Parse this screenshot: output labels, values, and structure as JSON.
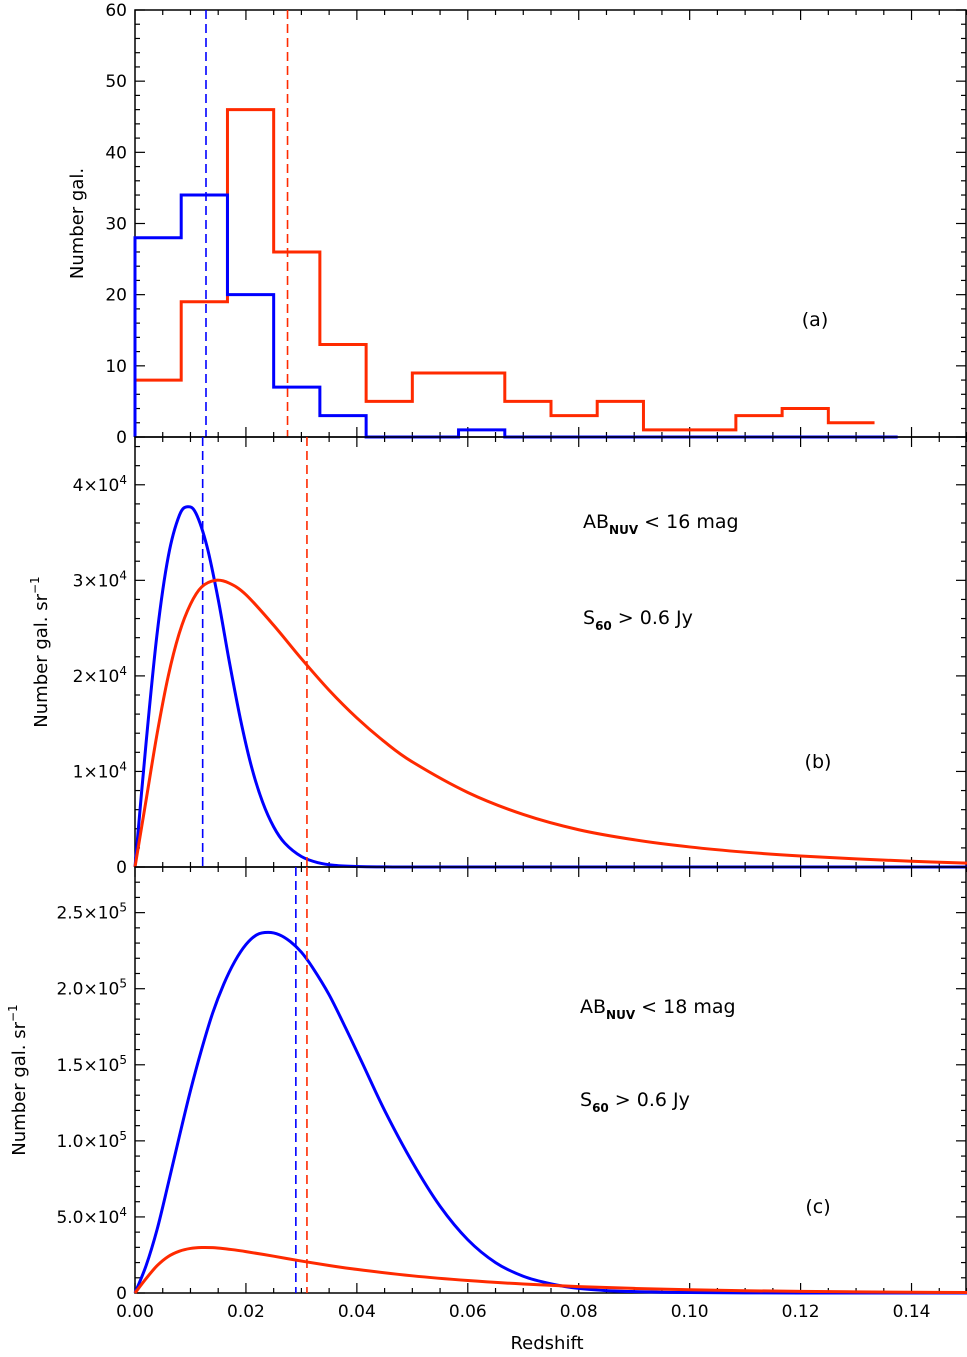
{
  "chart_data": [
    {
      "id": "a",
      "type": "histogram",
      "panel_label": "(a)",
      "ylabel": "Number gal.",
      "xlim": [
        0,
        0.15
      ],
      "ylim": [
        0,
        60
      ],
      "yticks": [
        {
          "v": 0,
          "label": "0"
        },
        {
          "v": 10,
          "label": "10"
        },
        {
          "v": 20,
          "label": "20"
        },
        {
          "v": 30,
          "label": "30"
        },
        {
          "v": 40,
          "label": "40"
        },
        {
          "v": 50,
          "label": "50"
        },
        {
          "v": 60,
          "label": "60"
        }
      ],
      "series": [
        {
          "color": "#ff2a00",
          "edges": [
            0,
            0.00833,
            0.01667,
            0.025,
            0.03333,
            0.04167,
            0.05,
            0.05833,
            0.06667,
            0.075,
            0.08333,
            0.09167,
            0.1,
            0.10833,
            0.11667,
            0.125,
            0.13333
          ],
          "counts": [
            8,
            19,
            46,
            26,
            13,
            5,
            9,
            9,
            5,
            3,
            5,
            1,
            1,
            3,
            4,
            2
          ],
          "vline": 0.0275
        },
        {
          "color": "#0000ff",
          "edges": [
            0,
            0.00833,
            0.01667,
            0.025,
            0.03333,
            0.04167,
            0.05,
            0.05833,
            0.06667,
            0.075,
            0.08333,
            0.09167,
            0.1,
            0.10833,
            0.11667,
            0.125,
            0.13333,
            0.1375
          ],
          "counts": [
            28,
            34,
            20,
            7,
            3,
            0,
            0,
            1,
            0,
            0,
            0,
            0,
            0,
            0,
            0,
            0,
            0
          ],
          "vline": 0.0128
        }
      ]
    },
    {
      "id": "b",
      "type": "line",
      "panel_label": "(b)",
      "ylabel": "Number gal. sr",
      "ylabel_sup": "−1",
      "annotations": [
        {
          "main": "AB",
          "sub": "NUV",
          "rest": " < 16 mag"
        },
        {
          "main": "S",
          "sub": "60",
          "rest": " > 0.6 Jy"
        }
      ],
      "xlim": [
        0,
        0.15
      ],
      "ylim": [
        0,
        45000
      ],
      "yticks": [
        {
          "v": 0,
          "label": "0",
          "sup": ""
        },
        {
          "v": 10000,
          "label": "1×10",
          "sup": "4"
        },
        {
          "v": 20000,
          "label": "2×10",
          "sup": "4"
        },
        {
          "v": 30000,
          "label": "3×10",
          "sup": "4"
        },
        {
          "v": 40000,
          "label": "4×10",
          "sup": "4"
        }
      ],
      "series": [
        {
          "color": "#0000ff",
          "x": [
            0,
            0.002,
            0.004,
            0.006,
            0.008,
            0.0095,
            0.011,
            0.013,
            0.015,
            0.017,
            0.019,
            0.021,
            0.023,
            0.025,
            0.027,
            0.03,
            0.033,
            0.036,
            0.04,
            0.045,
            0.05,
            0.06,
            0.08,
            0.1,
            0.15
          ],
          "y": [
            0,
            13000,
            24500,
            32500,
            36800,
            37700,
            37000,
            33500,
            28000,
            21500,
            15500,
            10500,
            6800,
            4200,
            2500,
            1100,
            450,
            170,
            50,
            10,
            0,
            0,
            0,
            0,
            0
          ],
          "vline": 0.0122
        },
        {
          "color": "#ff2a00",
          "x": [
            0,
            0.002,
            0.004,
            0.006,
            0.008,
            0.01,
            0.012,
            0.0145,
            0.017,
            0.02,
            0.025,
            0.03,
            0.035,
            0.04,
            0.045,
            0.05,
            0.06,
            0.07,
            0.08,
            0.09,
            0.1,
            0.11,
            0.12,
            0.13,
            0.14,
            0.15
          ],
          "y": [
            0,
            7000,
            14000,
            20000,
            24500,
            27500,
            29300,
            30000,
            29700,
            28500,
            25300,
            21800,
            18500,
            15600,
            13100,
            11000,
            7800,
            5500,
            3900,
            2850,
            2100,
            1550,
            1150,
            850,
            600,
            400
          ],
          "vline": 0.031
        }
      ]
    },
    {
      "id": "c",
      "type": "line",
      "panel_label": "(c)",
      "ylabel": "Number gal. sr",
      "ylabel_sup": "−1",
      "xlabel": "Redshift",
      "annotations": [
        {
          "main": "AB",
          "sub": "NUV",
          "rest": " < 18 mag"
        },
        {
          "main": "S",
          "sub": "60",
          "rest": " > 0.6 Jy"
        }
      ],
      "xlim": [
        0,
        0.15
      ],
      "ylim": [
        0,
        280000
      ],
      "xticks": [
        {
          "v": 0,
          "label": "0.00"
        },
        {
          "v": 0.02,
          "label": "0.02"
        },
        {
          "v": 0.04,
          "label": "0.04"
        },
        {
          "v": 0.06,
          "label": "0.06"
        },
        {
          "v": 0.08,
          "label": "0.08"
        },
        {
          "v": 0.1,
          "label": "0.10"
        },
        {
          "v": 0.12,
          "label": "0.12"
        },
        {
          "v": 0.14,
          "label": "0.14"
        }
      ],
      "yticks": [
        {
          "v": 0,
          "label": "0",
          "sup": ""
        },
        {
          "v": 50000,
          "label": "5.0×10",
          "sup": "4"
        },
        {
          "v": 100000,
          "label": "1.0×10",
          "sup": "5"
        },
        {
          "v": 150000,
          "label": "1.5×10",
          "sup": "5"
        },
        {
          "v": 200000,
          "label": "2.0×10",
          "sup": "5"
        },
        {
          "v": 250000,
          "label": "2.5×10",
          "sup": "5"
        }
      ],
      "series": [
        {
          "color": "#0000ff",
          "x": [
            0,
            0.002,
            0.004,
            0.006,
            0.008,
            0.01,
            0.012,
            0.014,
            0.016,
            0.018,
            0.02,
            0.022,
            0.024,
            0.026,
            0.028,
            0.03,
            0.032,
            0.035,
            0.038,
            0.041,
            0.045,
            0.05,
            0.055,
            0.06,
            0.065,
            0.07,
            0.075,
            0.08,
            0.085,
            0.09,
            0.095,
            0.1,
            0.11,
            0.12,
            0.13,
            0.15
          ],
          "y": [
            0,
            18000,
            42000,
            72000,
            103000,
            133000,
            160000,
            184000,
            203000,
            218000,
            229000,
            235500,
            237000,
            235500,
            231000,
            224000,
            214000,
            196000,
            174000,
            151000,
            120000,
            86000,
            57000,
            35000,
            20000,
            11000,
            6000,
            3000,
            1600,
            900,
            500,
            300,
            100,
            0,
            0,
            0
          ],
          "vline": 0.029
        },
        {
          "color": "#ff2a00",
          "x": [
            0,
            0.002,
            0.004,
            0.006,
            0.008,
            0.01,
            0.012,
            0.014,
            0.016,
            0.018,
            0.02,
            0.025,
            0.03,
            0.035,
            0.04,
            0.05,
            0.06,
            0.07,
            0.08,
            0.09,
            0.1,
            0.11,
            0.12,
            0.13,
            0.14,
            0.15
          ],
          "y": [
            0,
            9500,
            18000,
            24000,
            27500,
            29300,
            29900,
            29800,
            29200,
            28300,
            27200,
            24200,
            21000,
            18100,
            15500,
            11300,
            8200,
            5900,
            4200,
            3000,
            2100,
            1500,
            1050,
            750,
            500,
            350
          ],
          "vline": 0.031
        }
      ]
    }
  ]
}
